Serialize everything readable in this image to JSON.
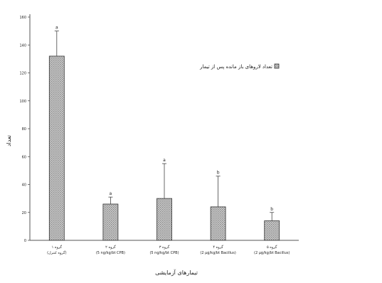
{
  "chart_data": {
    "type": "bar",
    "categories": [
      "گروه ۱ (گروه کنترل)",
      "گروه ۲ (5 ng/kg/bt CPB)",
      "گروه ۳ (5 ng/kg/bt CPB)",
      "گروه ۴ (2 μg/kg/bt Bacillus)",
      "گروه ۵ (2 μg/kg/bt Bacillus)"
    ],
    "category_lines": [
      [
        "گروه ۱",
        "(گروه کنترل)"
      ],
      [
        "گروه ۲",
        "(5 ng/kg/bt CPB)"
      ],
      [
        "گروه ۳",
        "(5 ng/kg/bt CPB)"
      ],
      [
        "گروه ۴",
        "(2 μg/kg/bt Bacillus)"
      ],
      [
        "گروه ۵",
        "(2 μg/kg/bt Bacillus)"
      ]
    ],
    "values": [
      132,
      26,
      30,
      24,
      14
    ],
    "errors": [
      18,
      5,
      25,
      22,
      6
    ],
    "sig_letters": [
      "a",
      "a",
      "a",
      "b",
      "b"
    ],
    "ylim": [
      0,
      160
    ],
    "yticks": [
      0,
      20,
      40,
      60,
      80,
      100,
      120,
      140,
      160
    ],
    "ylabel": "تعداد",
    "xlabel": "تیمارهای آزمایشی",
    "legend": {
      "label": "تعداد لاروهای باز مانده پس از تیمار",
      "position": "top-right"
    },
    "grid": false,
    "colors": {
      "bar_fill": "#d2d2d2",
      "bar_hatch": "#8a8a8a",
      "axis": "#555555"
    }
  }
}
